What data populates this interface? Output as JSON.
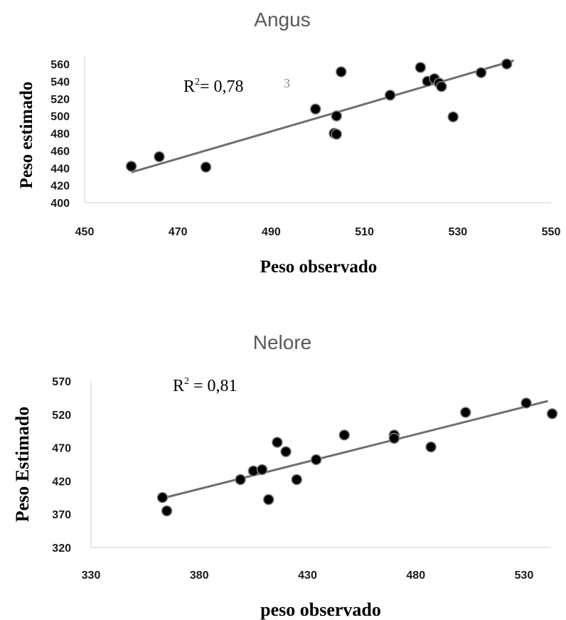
{
  "chart_data": [
    {
      "type": "scatter",
      "title": "Angus",
      "xlabel": "Peso observado",
      "ylabel": "Peso estimado",
      "annotation": {
        "base": "R",
        "sup": "2",
        "rest": "= 0,78"
      },
      "stray_glyph": "3",
      "xlim": [
        450,
        550
      ],
      "ylim": [
        400,
        560
      ],
      "x_ticks": [
        450,
        470,
        490,
        510,
        530,
        550
      ],
      "y_ticks": [
        400,
        420,
        440,
        460,
        480,
        500,
        520,
        540,
        560
      ],
      "points": [
        {
          "x": 460,
          "y": 442
        },
        {
          "x": 466,
          "y": 453
        },
        {
          "x": 476,
          "y": 441
        },
        {
          "x": 499.5,
          "y": 508
        },
        {
          "x": 503.5,
          "y": 480
        },
        {
          "x": 504,
          "y": 479
        },
        {
          "x": 504,
          "y": 500
        },
        {
          "x": 505,
          "y": 551
        },
        {
          "x": 515.5,
          "y": 524
        },
        {
          "x": 522,
          "y": 556
        },
        {
          "x": 523.5,
          "y": 540
        },
        {
          "x": 525,
          "y": 543
        },
        {
          "x": 526,
          "y": 538
        },
        {
          "x": 526.5,
          "y": 534
        },
        {
          "x": 529,
          "y": 499
        },
        {
          "x": 535,
          "y": 550
        },
        {
          "x": 540.5,
          "y": 560
        }
      ],
      "trendline": {
        "x": [
          460,
          542
        ],
        "y": [
          435,
          564
        ]
      },
      "marker_color": "#000000",
      "trend_color": "#6f6f6f"
    },
    {
      "type": "scatter",
      "title": "Nelore",
      "xlabel": "peso observado",
      "ylabel": "Peso Estimado",
      "annotation": {
        "base": "R",
        "sup": "2",
        "rest": " = 0,81"
      },
      "xlim": [
        330,
        545
      ],
      "ylim": [
        320,
        570
      ],
      "x_ticks": [
        330,
        380,
        430,
        480,
        530
      ],
      "y_ticks": [
        320,
        370,
        420,
        470,
        520,
        570
      ],
      "points": [
        {
          "x": 363,
          "y": 395
        },
        {
          "x": 365,
          "y": 375
        },
        {
          "x": 399,
          "y": 422
        },
        {
          "x": 405,
          "y": 435
        },
        {
          "x": 409,
          "y": 437
        },
        {
          "x": 412,
          "y": 392
        },
        {
          "x": 416,
          "y": 478
        },
        {
          "x": 420,
          "y": 464
        },
        {
          "x": 425,
          "y": 422
        },
        {
          "x": 434,
          "y": 452
        },
        {
          "x": 447,
          "y": 489
        },
        {
          "x": 470,
          "y": 489
        },
        {
          "x": 470,
          "y": 484
        },
        {
          "x": 487,
          "y": 471
        },
        {
          "x": 503,
          "y": 523
        },
        {
          "x": 531,
          "y": 537
        },
        {
          "x": 543,
          "y": 521
        }
      ],
      "trendline": {
        "x": [
          363,
          541
        ],
        "y": [
          394,
          540
        ]
      },
      "marker_color": "#000000",
      "trend_color": "#6f6f6f"
    }
  ]
}
